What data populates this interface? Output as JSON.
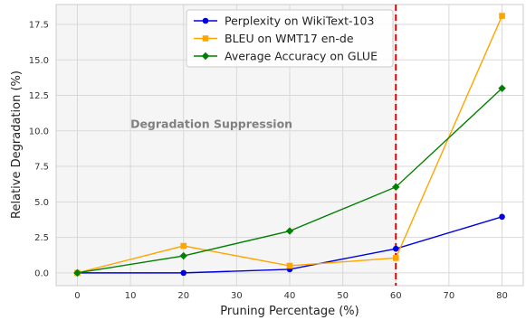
{
  "chart_data": {
    "type": "line",
    "title": "",
    "xlabel": "Pruning Percentage (%)",
    "ylabel": "Relative Degradation (%)",
    "xlim": [
      -4,
      84
    ],
    "ylim": [
      -0.9,
      18.9
    ],
    "xticks": [
      0,
      10,
      20,
      30,
      40,
      50,
      60,
      70,
      80
    ],
    "xtick_labels": [
      "0",
      "10",
      "20",
      "30",
      "40",
      "50",
      "60",
      "70",
      "80"
    ],
    "yticks": [
      0,
      2.5,
      5,
      7.5,
      10,
      12.5,
      15,
      17.5
    ],
    "ytick_labels": [
      "0.0",
      "2.5",
      "5.0",
      "7.5",
      "10.0",
      "12.5",
      "15.0",
      "17.5"
    ],
    "grid": true,
    "legend_position": "top-center",
    "x": [
      0,
      20,
      40,
      60,
      80
    ],
    "series": [
      {
        "name": "Perplexity on WikiText-103",
        "values": [
          0.0,
          0.0,
          0.25,
          1.7,
          3.95
        ],
        "color": "#0000dd",
        "marker": "circle"
      },
      {
        "name": "BLEU on WMT17 en-de",
        "values": [
          0.0,
          1.9,
          0.5,
          1.05,
          18.1
        ],
        "color": "#ffa500",
        "marker": "square"
      },
      {
        "name": "Average Accuracy on GLUE",
        "values": [
          0.0,
          1.2,
          2.95,
          6.05,
          13.0
        ],
        "color": "#008000",
        "marker": "diamond"
      }
    ],
    "shaded_region": {
      "x_from": -4,
      "x_to": 60,
      "label": "Degradation Suppression",
      "label_x": 10,
      "label_y": 10.2
    },
    "threshold_line": {
      "x": 60,
      "color": "#dd0000",
      "style": "dashed"
    }
  }
}
